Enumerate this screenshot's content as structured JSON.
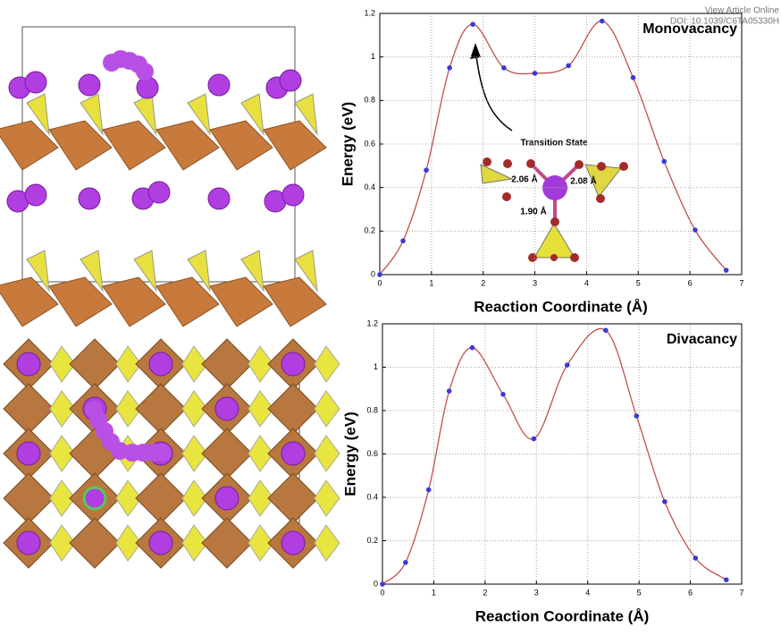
{
  "header": {
    "link": "View Article Online",
    "doi": "DOI: 10.1039/C6TA05330H"
  },
  "chart_data": [
    {
      "type": "line",
      "title": "Monovacancy",
      "x_label": "Reaction Coordinate (Å)",
      "y_label": "Energy (eV)",
      "x": [
        0,
        0.45,
        0.9,
        1.35,
        1.8,
        2.4,
        3.0,
        3.65,
        4.3,
        4.9,
        5.5,
        6.1,
        6.7
      ],
      "values": [
        0,
        0.155,
        0.48,
        0.95,
        1.15,
        0.95,
        0.925,
        0.96,
        1.165,
        0.905,
        0.52,
        0.205,
        0.02
      ],
      "color": "#c0504d",
      "marker_color": "#3a3ad8",
      "xlim": [
        0,
        7
      ],
      "ylim": [
        0,
        1.2
      ],
      "xticks": [
        0,
        1,
        2,
        3,
        4,
        5,
        6,
        7
      ],
      "yticks": [
        0,
        0.2,
        0.4,
        0.6,
        0.8,
        1,
        1.2
      ],
      "grid": true,
      "annotations": [
        "Transition State",
        "2.06 Å",
        "2.08 Å",
        "1.90 Å"
      ]
    },
    {
      "type": "line",
      "title": "Divacancy",
      "x_label": "Reaction Coordinate (Å)",
      "y_label": "Energy (eV)",
      "x": [
        0,
        0.45,
        0.9,
        1.3,
        1.75,
        2.35,
        2.95,
        3.6,
        4.35,
        4.95,
        5.5,
        6.1,
        6.7
      ],
      "values": [
        0,
        0.1,
        0.435,
        0.89,
        1.09,
        0.875,
        0.67,
        1.01,
        1.17,
        0.775,
        0.38,
        0.12,
        0.02
      ],
      "color": "#c0504d",
      "marker_color": "#3a3ad8",
      "xlim": [
        0,
        7
      ],
      "ylim": [
        0,
        1.2
      ],
      "xticks": [
        0,
        1,
        2,
        3,
        4,
        5,
        6,
        7
      ],
      "yticks": [
        0,
        0.2,
        0.4,
        0.6,
        0.8,
        1,
        1.2
      ],
      "grid": true
    }
  ]
}
